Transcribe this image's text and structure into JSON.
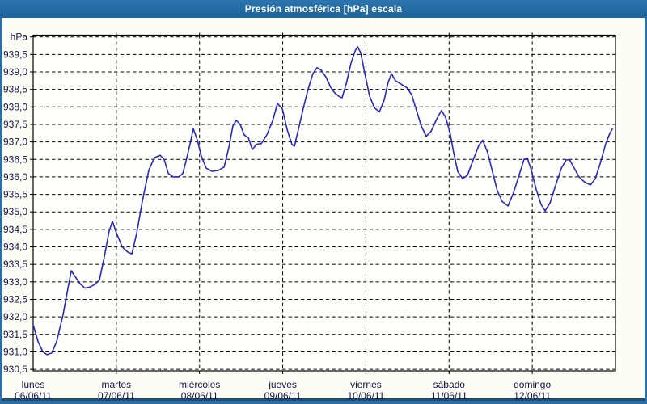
{
  "window": {
    "title": "Presión atmosférica [hPa] escala",
    "colors": {
      "frame": "#2d6da4",
      "titlebar": "#26699e",
      "titlebar_text": "#ffffff",
      "frame_dark_edge": "#1c4e76",
      "content_bg": "#fdfdf5"
    }
  },
  "chart_data": {
    "type": "line",
    "title": "Presión atmosférica [hPa] escala",
    "legend": "none",
    "grid": "dashed",
    "y_axis": {
      "unit_label": "hPa",
      "min": 930.5,
      "max": 940.0,
      "tick_step": 0.5,
      "tick_labels": [
        "939,5",
        "939,0",
        "938,5",
        "938,0",
        "937,5",
        "937,0",
        "936,5",
        "936,0",
        "935,5",
        "935,0",
        "934,5",
        "934,0",
        "933,5",
        "933,0",
        "932,5",
        "932,0",
        "931,5",
        "931,0",
        "930,5"
      ]
    },
    "x_axis": {
      "range_hours": [
        0,
        168
      ],
      "hours_per_day": 24,
      "days": [
        {
          "name": "lunes",
          "date": "06/06/11"
        },
        {
          "name": "martes",
          "date": "07/06/11"
        },
        {
          "name": "miércoles",
          "date": "08/06/11"
        },
        {
          "name": "jueves",
          "date": "09/06/11"
        },
        {
          "name": "viernes",
          "date": "10/06/11"
        },
        {
          "name": "sábado",
          "date": "11/06/11"
        },
        {
          "name": "domingo",
          "date": "12/06/11"
        }
      ]
    },
    "colors": {
      "line": "#2828c0",
      "grid": "#000000",
      "plot_border": "#000000",
      "label_text": "#15154a",
      "plot_bg": "#fffffb"
    },
    "series": [
      {
        "name": "presión atmosférica",
        "points_t_hours_hpa": [
          [
            0,
            931.78
          ],
          [
            1.4,
            931.3
          ],
          [
            2.8,
            931.0
          ],
          [
            4,
            930.92
          ],
          [
            5.4,
            930.97
          ],
          [
            6.8,
            931.3
          ],
          [
            8.6,
            932.05
          ],
          [
            10,
            932.8
          ],
          [
            11,
            933.32
          ],
          [
            12.1,
            933.15
          ],
          [
            13.5,
            932.95
          ],
          [
            14.9,
            932.82
          ],
          [
            16.3,
            932.85
          ],
          [
            17.7,
            932.92
          ],
          [
            19.1,
            933.05
          ],
          [
            20.5,
            933.7
          ],
          [
            21.9,
            934.45
          ],
          [
            22.9,
            934.73
          ],
          [
            24,
            934.4
          ],
          [
            25.7,
            934.0
          ],
          [
            27.3,
            933.85
          ],
          [
            28.5,
            933.8
          ],
          [
            29.9,
            934.4
          ],
          [
            31.5,
            935.3
          ],
          [
            33.4,
            936.2
          ],
          [
            35,
            936.55
          ],
          [
            36.6,
            936.62
          ],
          [
            37.8,
            936.5
          ],
          [
            39,
            936.1
          ],
          [
            40.4,
            936.0
          ],
          [
            42,
            936.0
          ],
          [
            43.2,
            936.1
          ],
          [
            44.1,
            936.45
          ],
          [
            45.3,
            936.95
          ],
          [
            46.2,
            937.38
          ],
          [
            47.4,
            937.05
          ],
          [
            48.5,
            936.6
          ],
          [
            49.9,
            936.25
          ],
          [
            51.6,
            936.16
          ],
          [
            53.4,
            936.18
          ],
          [
            55.1,
            936.28
          ],
          [
            56.5,
            936.85
          ],
          [
            57.6,
            937.45
          ],
          [
            58.6,
            937.62
          ],
          [
            59.7,
            937.5
          ],
          [
            60.9,
            937.2
          ],
          [
            62.1,
            937.12
          ],
          [
            63.2,
            936.78
          ],
          [
            64.4,
            936.93
          ],
          [
            65.8,
            936.95
          ],
          [
            67.4,
            937.2
          ],
          [
            69.1,
            937.6
          ],
          [
            70.5,
            938.1
          ],
          [
            71.9,
            937.95
          ],
          [
            73.3,
            937.35
          ],
          [
            74.7,
            936.92
          ],
          [
            75.4,
            936.88
          ],
          [
            76.5,
            937.35
          ],
          [
            77.9,
            937.95
          ],
          [
            79.3,
            938.5
          ],
          [
            80.7,
            938.95
          ],
          [
            81.9,
            939.12
          ],
          [
            83.1,
            939.05
          ],
          [
            84.5,
            938.85
          ],
          [
            85.9,
            938.55
          ],
          [
            87,
            938.4
          ],
          [
            88.2,
            938.3
          ],
          [
            89.1,
            938.26
          ],
          [
            90.3,
            938.65
          ],
          [
            91.7,
            939.25
          ],
          [
            92.9,
            939.6
          ],
          [
            93.6,
            939.72
          ],
          [
            94.5,
            939.55
          ],
          [
            95.7,
            938.95
          ],
          [
            97.1,
            938.3
          ],
          [
            98.5,
            937.97
          ],
          [
            99.9,
            937.86
          ],
          [
            101.3,
            938.2
          ],
          [
            102.4,
            938.7
          ],
          [
            103.4,
            938.95
          ],
          [
            104.5,
            938.75
          ],
          [
            106.2,
            938.65
          ],
          [
            107.8,
            938.55
          ],
          [
            109.2,
            938.35
          ],
          [
            110.6,
            937.9
          ],
          [
            112,
            937.45
          ],
          [
            113.4,
            937.16
          ],
          [
            114.8,
            937.3
          ],
          [
            116.4,
            937.65
          ],
          [
            117.8,
            937.9
          ],
          [
            119,
            937.7
          ],
          [
            120.2,
            937.3
          ],
          [
            121.3,
            936.7
          ],
          [
            122.5,
            936.15
          ],
          [
            123.9,
            935.95
          ],
          [
            125.3,
            936.05
          ],
          [
            127,
            936.5
          ],
          [
            128.6,
            936.9
          ],
          [
            129.7,
            937.05
          ],
          [
            131.1,
            936.7
          ],
          [
            132.5,
            936.15
          ],
          [
            133.9,
            935.6
          ],
          [
            135.3,
            935.3
          ],
          [
            137,
            935.17
          ],
          [
            138.6,
            935.55
          ],
          [
            140.2,
            936.05
          ],
          [
            141.6,
            936.5
          ],
          [
            142.6,
            936.53
          ],
          [
            143.7,
            936.2
          ],
          [
            145.1,
            935.65
          ],
          [
            146.5,
            935.22
          ],
          [
            147.7,
            935.03
          ],
          [
            149.1,
            935.25
          ],
          [
            150.7,
            935.75
          ],
          [
            152.4,
            936.25
          ],
          [
            153.8,
            936.48
          ],
          [
            154.7,
            936.5
          ],
          [
            156.1,
            936.25
          ],
          [
            157.5,
            936.0
          ],
          [
            159.1,
            935.85
          ],
          [
            160.8,
            935.77
          ],
          [
            162.2,
            935.95
          ],
          [
            163.8,
            936.45
          ],
          [
            165.2,
            936.95
          ],
          [
            166.4,
            937.25
          ],
          [
            167.1,
            937.37
          ]
        ]
      }
    ]
  }
}
